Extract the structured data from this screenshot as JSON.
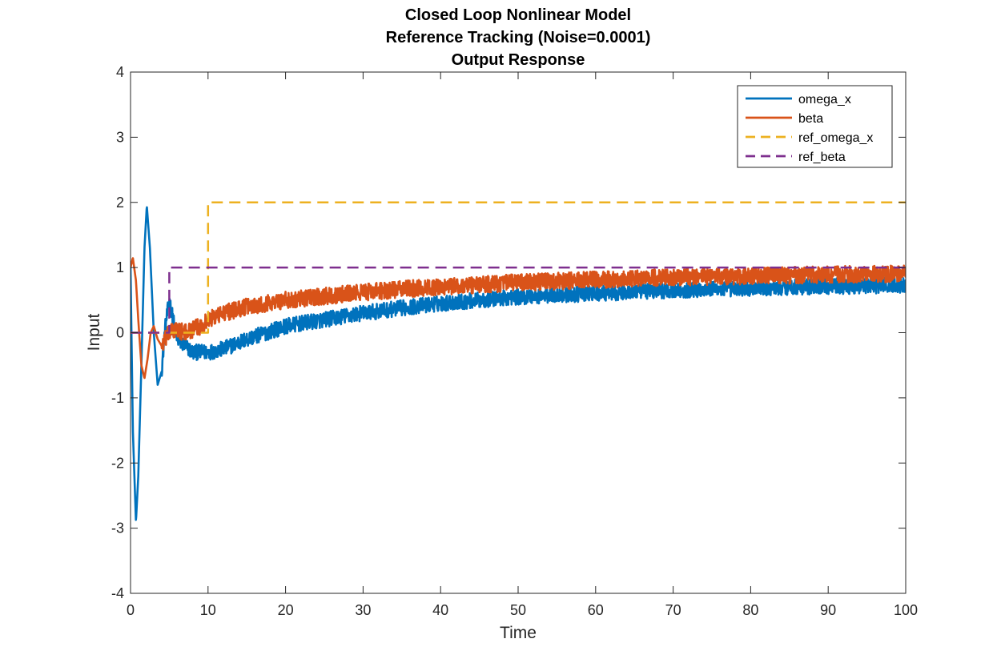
{
  "chart_data": {
    "type": "line",
    "title": [
      "Closed Loop Nonlinear Model",
      "Reference Tracking (Noise=0.0001)",
      "Output Response"
    ],
    "xlabel": "Time",
    "ylabel": "Input",
    "xlim": [
      0,
      100
    ],
    "ylim": [
      -4,
      4
    ],
    "xticks": [
      0,
      10,
      20,
      30,
      40,
      50,
      60,
      70,
      80,
      90,
      100
    ],
    "yticks": [
      -4,
      -3,
      -2,
      -1,
      0,
      1,
      2,
      3,
      4
    ],
    "grid": false,
    "legend_position": "top-right",
    "series": [
      {
        "name": "omega_x",
        "color": "#0072BD",
        "style": "solid",
        "noise_amplitude": 0.12,
        "x": [
          0,
          0.3,
          0.7,
          1.0,
          1.4,
          1.8,
          2.1,
          2.5,
          3.0,
          3.5,
          4.0,
          4.5,
          5.0,
          5.5,
          6.0,
          7.0,
          8.0,
          9.0,
          10.0,
          12.0,
          15.0,
          20.0,
          25.0,
          30.0,
          35.0,
          40.0,
          45.0,
          50.0,
          55.0,
          60.0,
          65.0,
          70.0,
          75.0,
          80.0,
          85.0,
          90.0,
          95.0,
          100.0
        ],
        "y": [
          1.0,
          -1.5,
          -2.9,
          -2.2,
          -0.5,
          1.3,
          1.95,
          1.3,
          0.0,
          -0.8,
          -0.6,
          0.1,
          0.5,
          0.2,
          -0.1,
          -0.2,
          -0.3,
          -0.3,
          -0.3,
          -0.25,
          -0.1,
          0.1,
          0.2,
          0.3,
          0.38,
          0.45,
          0.5,
          0.55,
          0.58,
          0.6,
          0.63,
          0.65,
          0.67,
          0.68,
          0.7,
          0.71,
          0.72,
          0.73
        ]
      },
      {
        "name": "beta",
        "color": "#D95319",
        "style": "solid",
        "noise_amplitude": 0.13,
        "x": [
          0,
          0.3,
          0.7,
          1.0,
          1.4,
          1.8,
          2.2,
          2.6,
          3.0,
          3.5,
          4.0,
          5.0,
          6.0,
          7.0,
          8.0,
          9.0,
          10.0,
          12.0,
          15.0,
          20.0,
          25.0,
          30.0,
          35.0,
          40.0,
          45.0,
          50.0,
          55.0,
          60.0,
          65.0,
          70.0,
          75.0,
          80.0,
          85.0,
          90.0,
          95.0,
          100.0
        ],
        "y": [
          1.0,
          1.15,
          0.8,
          0.2,
          -0.5,
          -0.7,
          -0.4,
          0.0,
          0.1,
          -0.1,
          -0.2,
          0.0,
          0.05,
          0.0,
          0.05,
          0.1,
          0.2,
          0.3,
          0.4,
          0.5,
          0.56,
          0.62,
          0.67,
          0.7,
          0.74,
          0.77,
          0.79,
          0.81,
          0.83,
          0.85,
          0.86,
          0.87,
          0.88,
          0.89,
          0.9,
          0.9
        ]
      },
      {
        "name": "ref_omega_x",
        "color": "#EDB120",
        "style": "dashed",
        "noise_amplitude": 0,
        "x": [
          0,
          10,
          10,
          100
        ],
        "y": [
          0,
          0,
          2,
          2
        ]
      },
      {
        "name": "ref_beta",
        "color": "#7E2F8E",
        "style": "dashed",
        "noise_amplitude": 0,
        "x": [
          0,
          5,
          5,
          100
        ],
        "y": [
          0,
          0,
          1,
          1
        ]
      }
    ]
  }
}
